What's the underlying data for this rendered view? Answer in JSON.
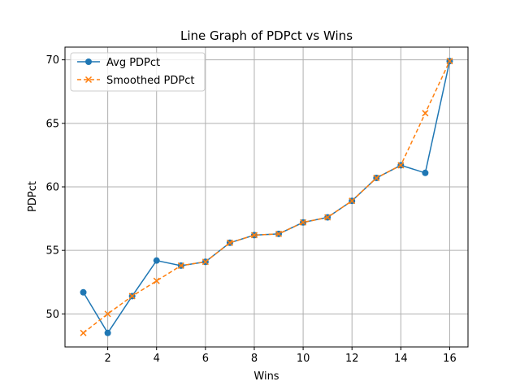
{
  "chart_data": {
    "type": "line",
    "title": "Line Graph of PDPct vs Wins",
    "xlabel": "Wins",
    "ylabel": "PDPct",
    "x": [
      1,
      2,
      3,
      4,
      5,
      6,
      7,
      8,
      9,
      10,
      11,
      12,
      13,
      14,
      15,
      16
    ],
    "xlim": [
      0.25,
      16.75
    ],
    "ylim": [
      47.4,
      71.0
    ],
    "xticks": [
      2,
      4,
      6,
      8,
      10,
      12,
      14,
      16
    ],
    "yticks": [
      50,
      55,
      60,
      65,
      70
    ],
    "grid": true,
    "legend_position": "top-left",
    "series": [
      {
        "name": "Avg PDPct",
        "values": [
          51.7,
          48.5,
          51.4,
          54.2,
          53.8,
          54.1,
          55.6,
          56.2,
          56.3,
          57.2,
          57.6,
          58.9,
          60.7,
          61.7,
          61.1,
          69.9
        ],
        "color": "#1f77b4",
        "marker": "circle",
        "linestyle": "solid"
      },
      {
        "name": "Smoothed PDPct",
        "values": [
          48.5,
          50.0,
          51.4,
          52.6,
          53.8,
          54.1,
          55.6,
          56.2,
          56.3,
          57.2,
          57.6,
          58.9,
          60.7,
          61.7,
          65.8,
          69.9
        ],
        "color": "#ff7f0e",
        "marker": "x",
        "linestyle": "dashed"
      }
    ]
  }
}
